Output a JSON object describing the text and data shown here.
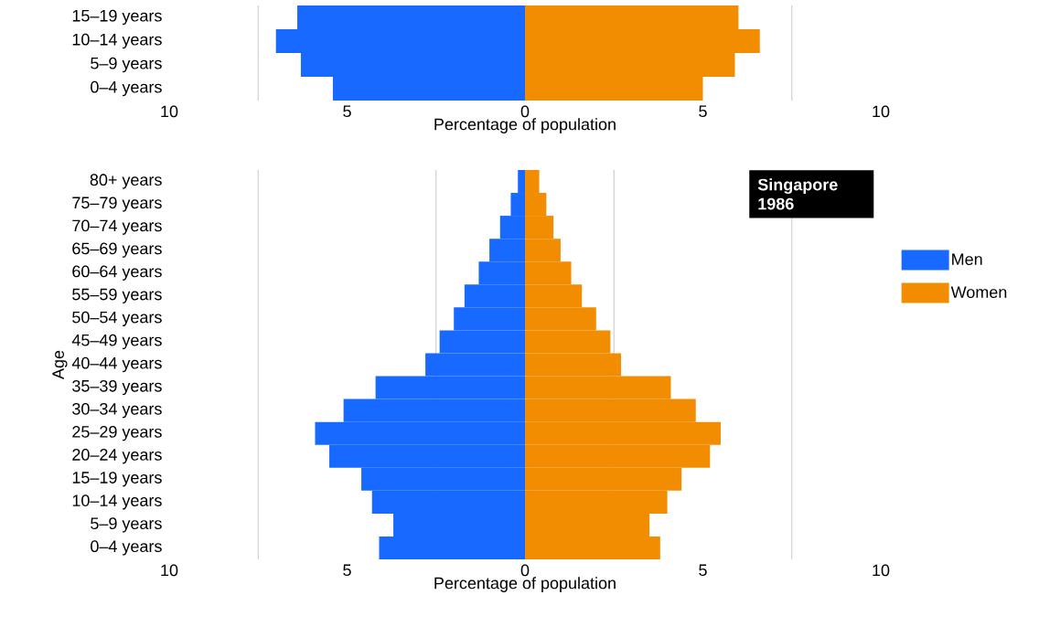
{
  "chart_data": [
    {
      "type": "bar",
      "orientation": "horizontal",
      "stacked": true,
      "xlabel": "Percentage of population",
      "categories": [
        "15–19 years",
        "10–14 years",
        "5–9 years",
        "0–4 years"
      ],
      "series": [
        {
          "color": "#1769ff",
          "values": [
            -6.4,
            -7.0,
            -6.3,
            -5.4
          ]
        },
        {
          "color": "#f28c00",
          "values": [
            6.0,
            6.6,
            5.9,
            5.0
          ]
        }
      ],
      "xlim": [
        -10,
        10
      ],
      "xticks": [
        {
          "value": -10,
          "label": "10"
        },
        {
          "value": -7.5,
          "label": null
        },
        {
          "value": -5,
          "label": "5"
        },
        {
          "value": -2.5,
          "label": null
        },
        0,
        {
          "value": 2.5,
          "label": null
        },
        5,
        {
          "value": 7.5,
          "label": null
        },
        10
      ],
      "grid": true
    },
    {
      "type": "bar",
      "orientation": "horizontal",
      "stacked": true,
      "xlabel": "Percentage of population",
      "ylabel": "Age",
      "categories": [
        "80+ years",
        "75–79 years",
        "70–74 years",
        "65–69 years",
        "60–64 years",
        "55–59 years",
        "50–54 years",
        "45–49 years",
        "40–44 years",
        "35–39 years",
        "30–34 years",
        "25–29 years",
        "20–24 years",
        "15–19 years",
        "10–14 years",
        "5–9 years",
        "0–4 years"
      ],
      "series": [
        {
          "name": "Men",
          "color": "#1769ff",
          "values": [
            -0.2,
            -0.4,
            -0.7,
            -1.0,
            -1.3,
            -1.7,
            -2.0,
            -2.4,
            -2.8,
            -4.2,
            -5.1,
            -5.9,
            -5.5,
            -4.6,
            -4.3,
            -3.7,
            -4.1
          ]
        },
        {
          "name": "Women",
          "color": "#f28c00",
          "values": [
            0.4,
            0.6,
            0.8,
            1.0,
            1.3,
            1.6,
            2.0,
            2.4,
            2.7,
            4.1,
            4.8,
            5.5,
            5.2,
            4.4,
            4.0,
            3.5,
            3.8
          ]
        }
      ],
      "xlim": [
        -10,
        10
      ],
      "xticks": [
        {
          "value": -10,
          "label": "10"
        },
        {
          "value": -7.5,
          "label": null
        },
        {
          "value": -5,
          "label": "5"
        },
        {
          "value": -2.5,
          "label": null
        },
        0,
        {
          "value": 2.5,
          "label": null
        },
        5,
        {
          "value": 7.5,
          "label": null
        },
        10
      ],
      "grid": true,
      "legend": "right",
      "annotations": [
        "Singapore 1986"
      ]
    }
  ]
}
